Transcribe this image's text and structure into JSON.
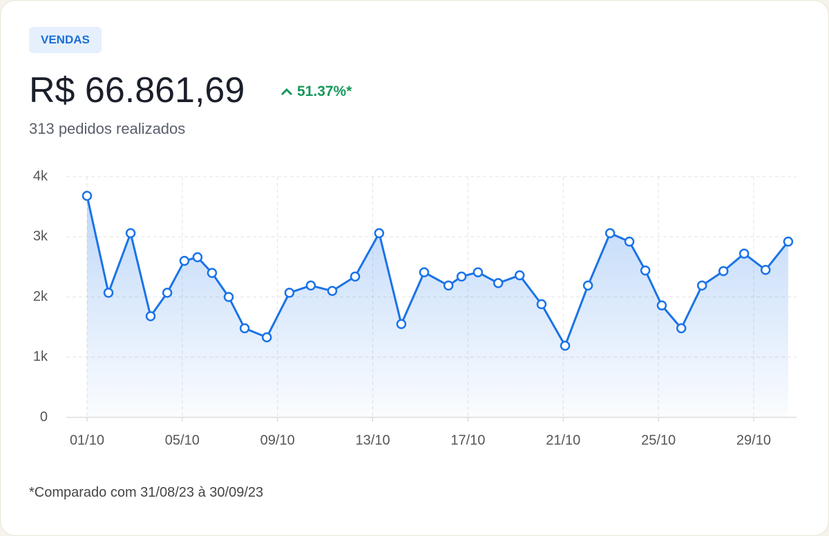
{
  "badge": "VENDAS",
  "amount": "R$ 66.861,69",
  "change": "51.37%*",
  "orders": "313 pedidos realizados",
  "footnote": "*Comparado com 31/08/23 à 30/09/23",
  "chart_data": {
    "type": "line",
    "color": "#1a73e8",
    "grid": true,
    "x": [
      1.0,
      1.9,
      2.83,
      3.67,
      4.37,
      5.09,
      5.64,
      6.25,
      6.95,
      7.62,
      8.55,
      9.5,
      10.4,
      11.3,
      12.26,
      13.27,
      14.2,
      15.16,
      16.18,
      16.73,
      17.42,
      18.27,
      19.17,
      20.09,
      21.08,
      22.04,
      22.97,
      23.78,
      24.45,
      25.14,
      25.96,
      26.83,
      27.73,
      28.6,
      29.5,
      30.45
    ],
    "values": [
      3680,
      2070,
      3060,
      1680,
      2070,
      2600,
      2660,
      2400,
      2000,
      1480,
      1330,
      2070,
      2190,
      2100,
      2340,
      3060,
      1550,
      2410,
      2190,
      2340,
      2410,
      2230,
      2360,
      1880,
      1190,
      2190,
      3060,
      2920,
      2440,
      1860,
      1480,
      2190,
      2430,
      2720,
      2450,
      2920
    ],
    "xlim": [
      0.13,
      30.8
    ],
    "xticks": [
      {
        "value": 1,
        "label": "01/10"
      },
      {
        "value": 5,
        "label": "05/10"
      },
      {
        "value": 9,
        "label": "09/10"
      },
      {
        "value": 13,
        "label": "13/10"
      },
      {
        "value": 17,
        "label": "17/10"
      },
      {
        "value": 21,
        "label": "21/10"
      },
      {
        "value": 25,
        "label": "25/10"
      },
      {
        "value": 29,
        "label": "29/10"
      }
    ],
    "ylim": [
      0,
      4000
    ],
    "yticks": [
      0,
      {
        "value": 1000,
        "label": "1k"
      },
      {
        "value": 2000,
        "label": "2k"
      },
      {
        "value": 3000,
        "label": "3k"
      },
      {
        "value": 4000,
        "label": "4k"
      }
    ]
  }
}
